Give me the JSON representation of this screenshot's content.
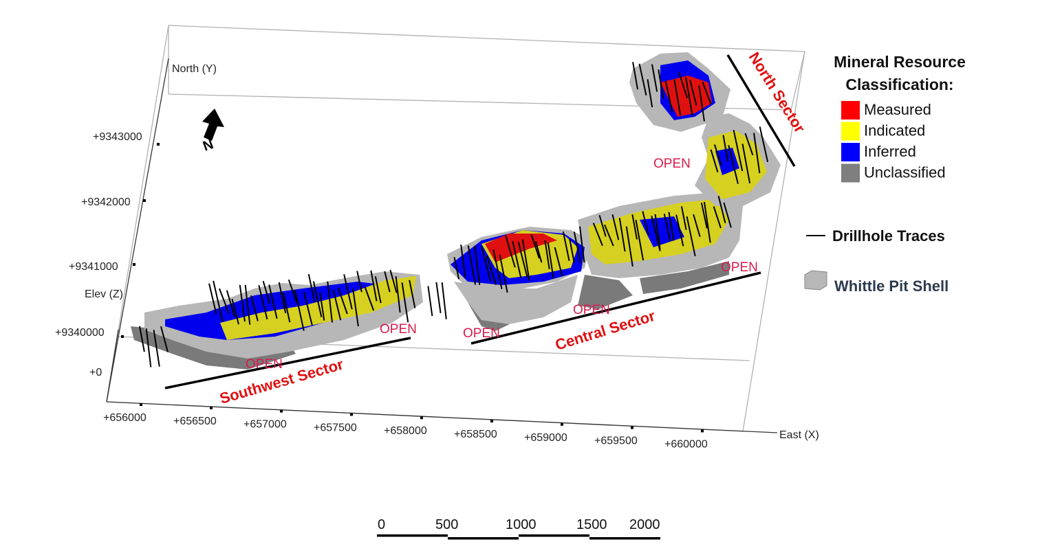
{
  "axes": {
    "north": {
      "label": "North (Y)",
      "ticks": [
        "+9343000",
        "+9342000",
        "+9341000",
        "+9340000"
      ]
    },
    "elevation": {
      "label": "Elev (Z)",
      "ticks": [
        "+0"
      ]
    },
    "east": {
      "label": "East (X)",
      "ticks": [
        "+656000",
        "+656500",
        "+657000",
        "+657500",
        "+658000",
        "+658500",
        "+659000",
        "+659500",
        "+660000"
      ]
    }
  },
  "north_arrow": "N",
  "sectors": [
    "Southwest Sector",
    "Central Sector",
    "North Sector"
  ],
  "open_labels": [
    "OPEN",
    "OPEN",
    "OPEN",
    "OPEN",
    "OPEN",
    "OPEN"
  ],
  "legend": {
    "title": "Mineral Resource Classification:",
    "classes": [
      {
        "label": "Measured",
        "color": "#ff0000"
      },
      {
        "label": "Indicated",
        "color": "#ffff00"
      },
      {
        "label": "Inferred",
        "color": "#0000ff"
      },
      {
        "label": "Unclassified",
        "color": "#7f7f7f"
      }
    ],
    "drillholes": "Drillhole Traces",
    "pit_shell": "Whittle Pit Shell"
  },
  "scale_bar": [
    "0",
    "500",
    "1000",
    "1500",
    "2000"
  ]
}
